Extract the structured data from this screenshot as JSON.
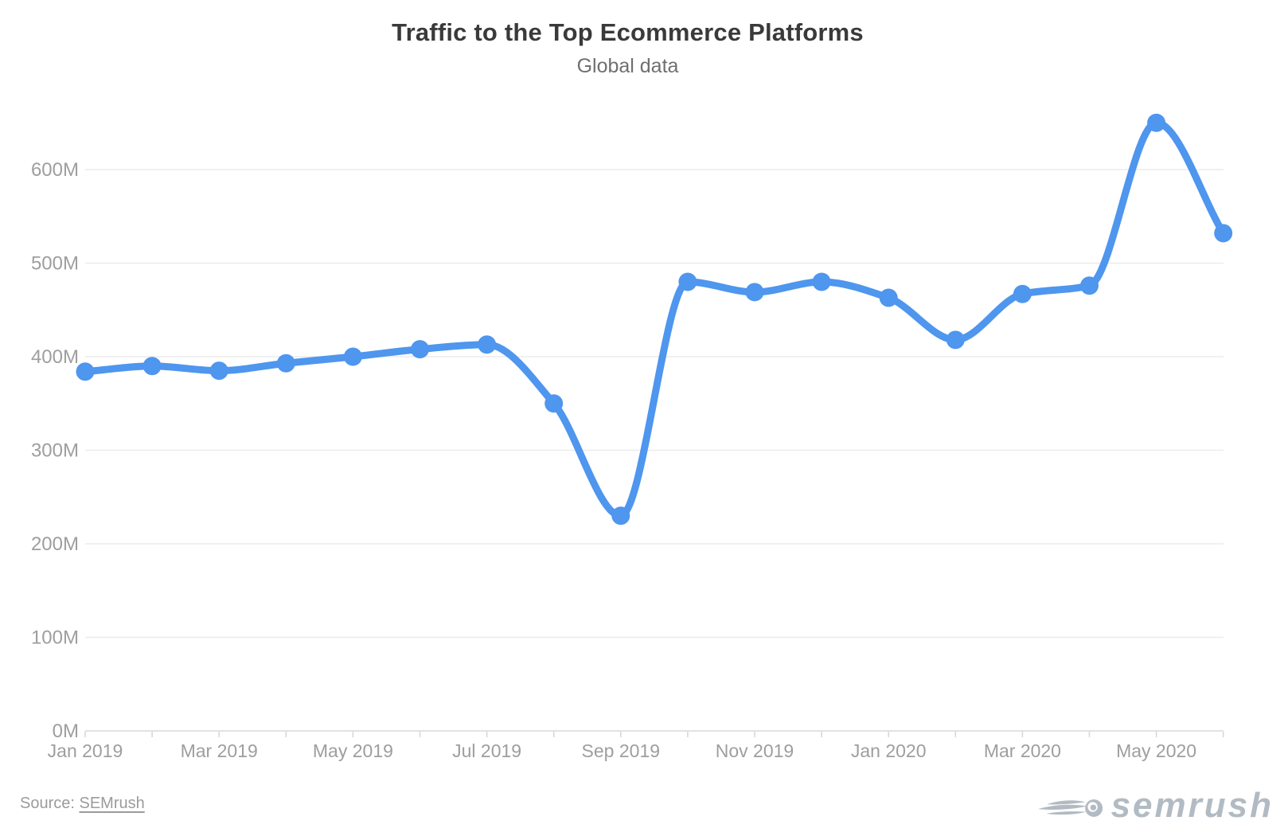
{
  "header": {
    "title": "Traffic to the Top Ecommerce Platforms",
    "subtitle": "Global data"
  },
  "footer": {
    "source_label": "Source:",
    "source_link": "SEMrush",
    "logo_text": "semrush"
  },
  "chart_data": {
    "type": "line",
    "title": "Traffic to the Top Ecommerce Platforms",
    "subtitle": "Global data",
    "categories": [
      "Jan 2019",
      "Feb 2019",
      "Mar 2019",
      "Apr 2019",
      "May 2019",
      "Jun 2019",
      "Jul 2019",
      "Aug 2019",
      "Sep 2019",
      "Oct 2019",
      "Nov 2019",
      "Dec 2019",
      "Jan 2020",
      "Feb 2020",
      "Mar 2020",
      "Apr 2020",
      "May 2020",
      "Jun 2020"
    ],
    "values": [
      384,
      390,
      385,
      393,
      400,
      408,
      413,
      350,
      230,
      480,
      469,
      480,
      463,
      418,
      467,
      476,
      650,
      532
    ],
    "series_unit": "M",
    "x_tick_labels": [
      "Jan 2019",
      "Mar 2019",
      "May 2019",
      "Jul 2019",
      "Sep 2019",
      "Nov 2019",
      "Jan 2020",
      "Mar 2020",
      "May 2020"
    ],
    "x_label_every": 2,
    "y_ticks": [
      0,
      100,
      200,
      300,
      400,
      500,
      600
    ],
    "y_tick_suffix": "M",
    "ylim": [
      0,
      670
    ],
    "grid": "horizontal-only",
    "legend": "none",
    "line_style": "smooth-with-markers",
    "colors": {
      "line": "#4e96ee",
      "marker": "#4e96ee",
      "gridline": "#ececec",
      "axis_line": "#e2e2e2",
      "tick_mark": "#d6d6d6",
      "axis_label": "#9e9e9e",
      "title": "#3a3a3a",
      "subtitle": "#6f6f6f",
      "source_text": "#9b9b9b",
      "logo_gray": "#b2bbc3"
    }
  }
}
